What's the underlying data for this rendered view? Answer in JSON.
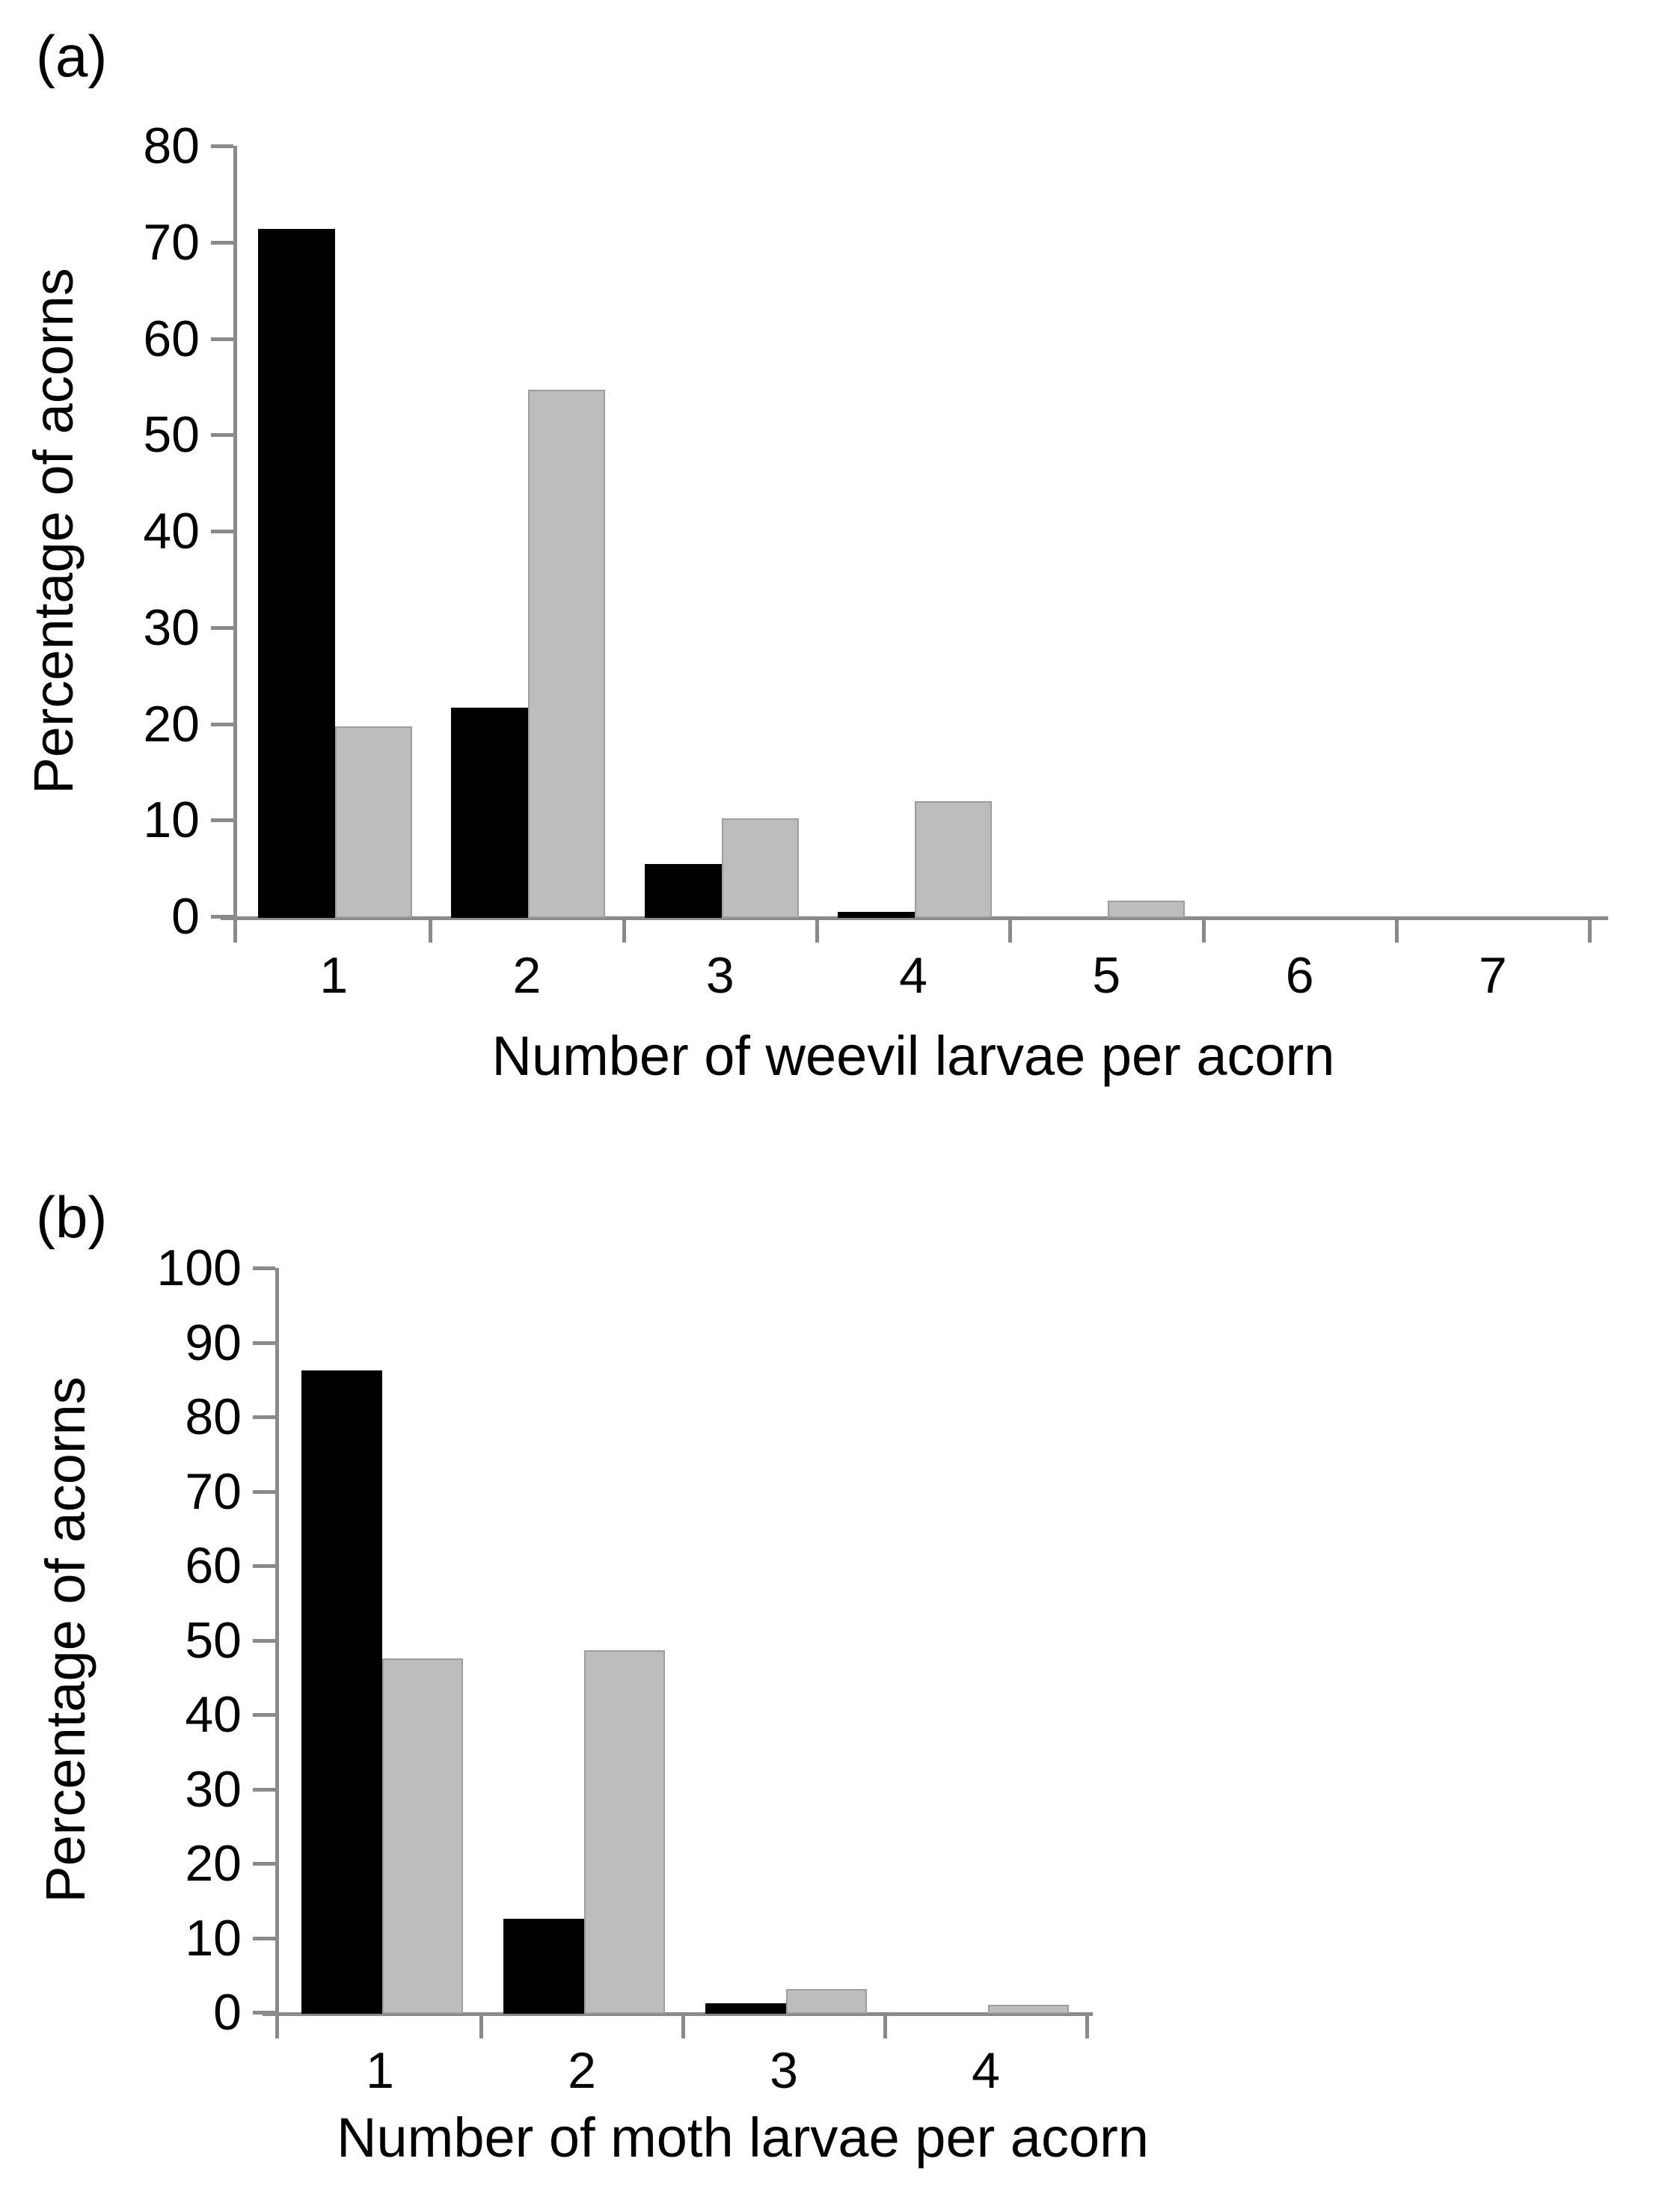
{
  "page": {
    "background": "#ffffff",
    "text_color": "#000000",
    "axis_color": "#8a8a8a"
  },
  "chart_data": [
    {
      "type": "bar",
      "panel_label": "(a)",
      "title": "",
      "xlabel": "Number of weevil larvae per acorn",
      "ylabel": "Percentage of acorns",
      "categories": [
        "1",
        "2",
        "3",
        "4",
        "5",
        "6",
        "7"
      ],
      "series": [
        {
          "name": "black",
          "color": "#000000",
          "border": null,
          "values": [
            71.4,
            21.7,
            5.4,
            0.5,
            0,
            0,
            0
          ]
        },
        {
          "name": "grey",
          "color": "#bdbdbd",
          "border": "#9e9e9e",
          "values": [
            19.7,
            54.7,
            10.2,
            12.0,
            1.6,
            0,
            0
          ]
        }
      ],
      "ylim": [
        0,
        80
      ],
      "yticks": [
        0,
        10,
        20,
        30,
        40,
        50,
        60,
        70,
        80
      ],
      "grid": false,
      "legend": "none",
      "axis_color": "#8a8a8a",
      "text_color": "#000000"
    },
    {
      "type": "bar",
      "panel_label": "(b)",
      "title": "",
      "xlabel": "Number of moth larvae per acorn",
      "ylabel": "Percentage of acorns",
      "categories": [
        "1",
        "2",
        "3",
        "4"
      ],
      "series": [
        {
          "name": "black",
          "color": "#000000",
          "border": null,
          "values": [
            86.2,
            12.6,
            1.2,
            0
          ]
        },
        {
          "name": "grey",
          "color": "#bdbdbd",
          "border": "#9e9e9e",
          "values": [
            47.5,
            48.6,
            3.1,
            1.0
          ]
        }
      ],
      "ylim": [
        0,
        100
      ],
      "yticks": [
        0,
        10,
        20,
        30,
        40,
        50,
        60,
        70,
        80,
        90,
        100
      ],
      "grid": false,
      "legend": "none",
      "axis_color": "#8a8a8a",
      "text_color": "#000000"
    }
  ]
}
